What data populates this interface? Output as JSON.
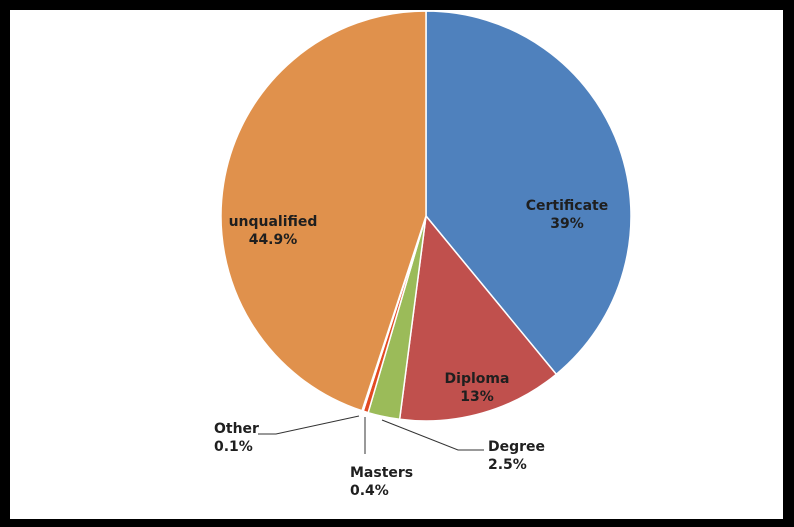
{
  "chart_data": {
    "type": "pie",
    "slices": [
      {
        "label": "Certificate",
        "value_text": "39%",
        "value": 39,
        "color": "#4f81bd"
      },
      {
        "label": "Diploma",
        "value_text": "13%",
        "value": 13,
        "color": "#c0504d"
      },
      {
        "label": "Degree",
        "value_text": "2.5%",
        "value": 2.5,
        "color": "#9bbb59"
      },
      {
        "label": "Masters",
        "value_text": "0.4%",
        "value": 0.4,
        "color": "#e24a22"
      },
      {
        "label": "Other",
        "value_text": "0.1%",
        "value": 0.1,
        "color": "#b8cce4"
      },
      {
        "label": "unqualified",
        "value_text": "44.9%",
        "value": 44.9,
        "color": "#e0914c"
      }
    ]
  }
}
